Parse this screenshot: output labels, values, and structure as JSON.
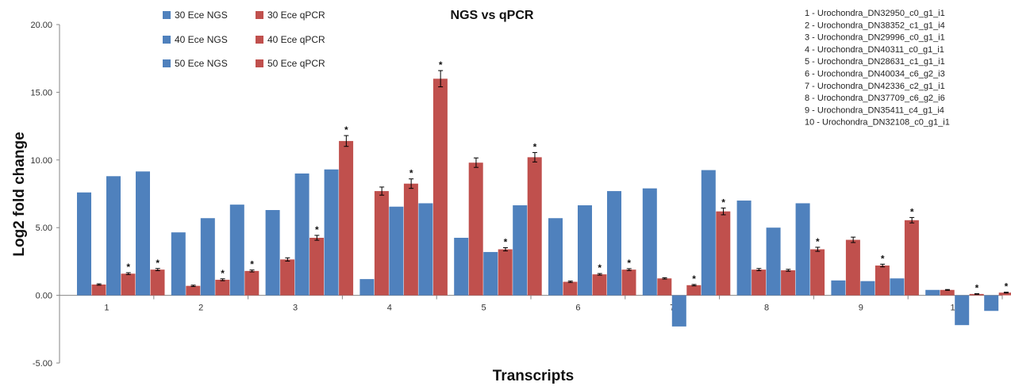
{
  "chart_data": {
    "type": "bar",
    "title": "NGS vs qPCR",
    "xlabel": "Transcripts",
    "ylabel": "Log2 fold change",
    "ylim": [
      -5,
      20
    ],
    "yticks": [
      "-5.00",
      "0.00",
      "5.00",
      "10.00",
      "15.00",
      "20.00"
    ],
    "ytick_values": [
      -5,
      0,
      5,
      10,
      15,
      20
    ],
    "categories": [
      "1",
      "2",
      "3",
      "4",
      "5",
      "6",
      "7",
      "8",
      "9",
      "10"
    ],
    "grid": false,
    "legend_position": "top-left",
    "series": [
      {
        "name": "30 Ece NGS",
        "color": "#4f81bd",
        "values": [
          7.6,
          4.65,
          6.3,
          1.2,
          4.25,
          5.7,
          7.9,
          7.0,
          1.1,
          0.4
        ]
      },
      {
        "name": "30 Ece qPCR",
        "color": "#c0504d",
        "values": [
          0.8,
          0.7,
          2.65,
          7.7,
          9.8,
          1.0,
          1.25,
          1.9,
          4.1,
          0.4
        ],
        "errors": [
          0.05,
          0.05,
          0.12,
          0.3,
          0.35,
          0.05,
          0.05,
          0.08,
          0.2,
          0.03
        ]
      },
      {
        "name": "40 Ece NGS",
        "color": "#4f81bd",
        "values": [
          8.8,
          5.7,
          9.0,
          6.55,
          3.2,
          6.65,
          -2.3,
          5.0,
          1.05,
          -2.2
        ]
      },
      {
        "name": "40 Ece qPCR",
        "color": "#c0504d",
        "values": [
          1.6,
          1.15,
          4.25,
          8.25,
          3.4,
          1.55,
          0.75,
          1.85,
          2.2,
          0.1
        ],
        "errors": [
          0.07,
          0.07,
          0.18,
          0.35,
          0.12,
          0.06,
          0.05,
          0.07,
          0.1,
          0.02
        ],
        "significant": [
          true,
          true,
          true,
          true,
          true,
          true,
          true,
          false,
          true,
          true
        ]
      },
      {
        "name": "50 Ece NGS",
        "color": "#4f81bd",
        "values": [
          9.15,
          6.7,
          9.3,
          6.8,
          6.65,
          7.7,
          9.25,
          6.8,
          1.25,
          -1.15
        ]
      },
      {
        "name": "50 Ece qPCR",
        "color": "#c0504d",
        "values": [
          1.9,
          1.8,
          11.4,
          16.0,
          10.2,
          1.9,
          6.2,
          3.4,
          5.55,
          0.2
        ],
        "errors": [
          0.08,
          0.07,
          0.4,
          0.6,
          0.35,
          0.07,
          0.25,
          0.15,
          0.2,
          0.03
        ],
        "significant": [
          true,
          true,
          true,
          true,
          true,
          true,
          true,
          true,
          true,
          true
        ]
      }
    ],
    "significance_marker": "*",
    "transcript_key": [
      "1 - Urochondra_DN32950_c0_g1_i1",
      "2 - Urochondra_DN38352_c1_g1_i4",
      "3 - Urochondra_DN29996_c0_g1_i1",
      "4 - Urochondra_DN40311_c0_g1_i1",
      "5 - Urochondra_DN28631_c1_g1_i1",
      "6 - Urochondra_DN40034_c6_g2_i3",
      "7 - Urochondra_DN42336_c2_g1_i1",
      "8 - Urochondra_DN37709_c6_g2_i6",
      "9 - Urochondra_DN35411_c4_g1_i4",
      "10 - Urochondra_DN32108_c0_g1_i1"
    ]
  }
}
